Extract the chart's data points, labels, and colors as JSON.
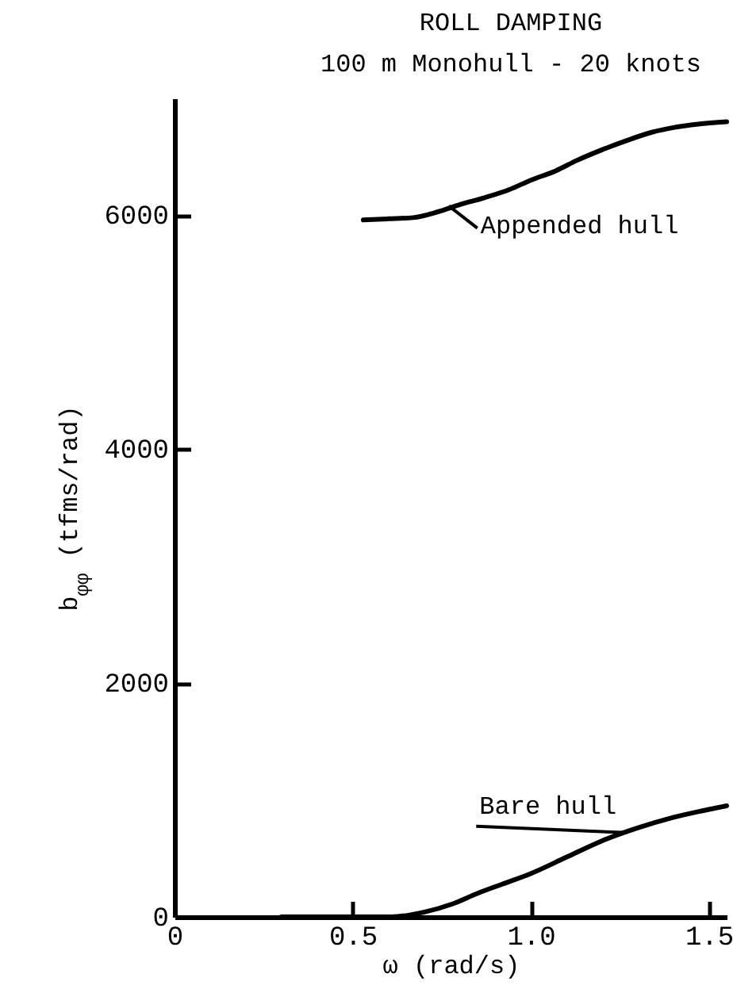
{
  "chart_data": {
    "type": "line",
    "title": "ROLL DAMPING",
    "subtitle": "100 m Monohull - 20 knots",
    "xlabel": "ω (rad/s)",
    "ylabel": "b$_{φφ}$ (tfms/rad)",
    "xlim": [
      0,
      1.55
    ],
    "xticks": [
      0,
      0.5,
      {
        "value": 1,
        "label": "1.0"
      },
      1.5
    ],
    "ylim": [
      0,
      7000
    ],
    "yticks": [
      0,
      2000,
      4000,
      6000
    ],
    "grid": false,
    "legend": false,
    "line_style": "solid",
    "marker": "none",
    "series": [
      {
        "color": "#000000",
        "x": [
          0.53,
          0.6,
          0.67,
          0.74,
          0.8,
          0.87,
          0.94,
          1.0,
          1.07,
          1.13,
          1.2,
          1.27,
          1.34,
          1.4,
          1.47,
          1.55
        ],
        "values": [
          5960,
          5970,
          5980,
          6030,
          6090,
          6150,
          6220,
          6300,
          6380,
          6470,
          6560,
          6640,
          6710,
          6750,
          6780,
          6800
        ]
      },
      {
        "color": "#000000",
        "x": [
          0.3,
          0.5,
          0.61,
          0.7,
          0.78,
          0.85,
          0.92,
          1.0,
          1.1,
          1.2,
          1.3,
          1.4,
          1.47,
          1.55
        ],
        "values": [
          0,
          0,
          0,
          40,
          110,
          200,
          280,
          370,
          510,
          650,
          760,
          850,
          900,
          950
        ]
      }
    ],
    "annotations": [
      {
        "text": "Appended hull",
        "x": 0.77,
        "y": 6080
      },
      {
        "text": "Bare hull",
        "x": 1.27,
        "y": 720
      }
    ]
  }
}
